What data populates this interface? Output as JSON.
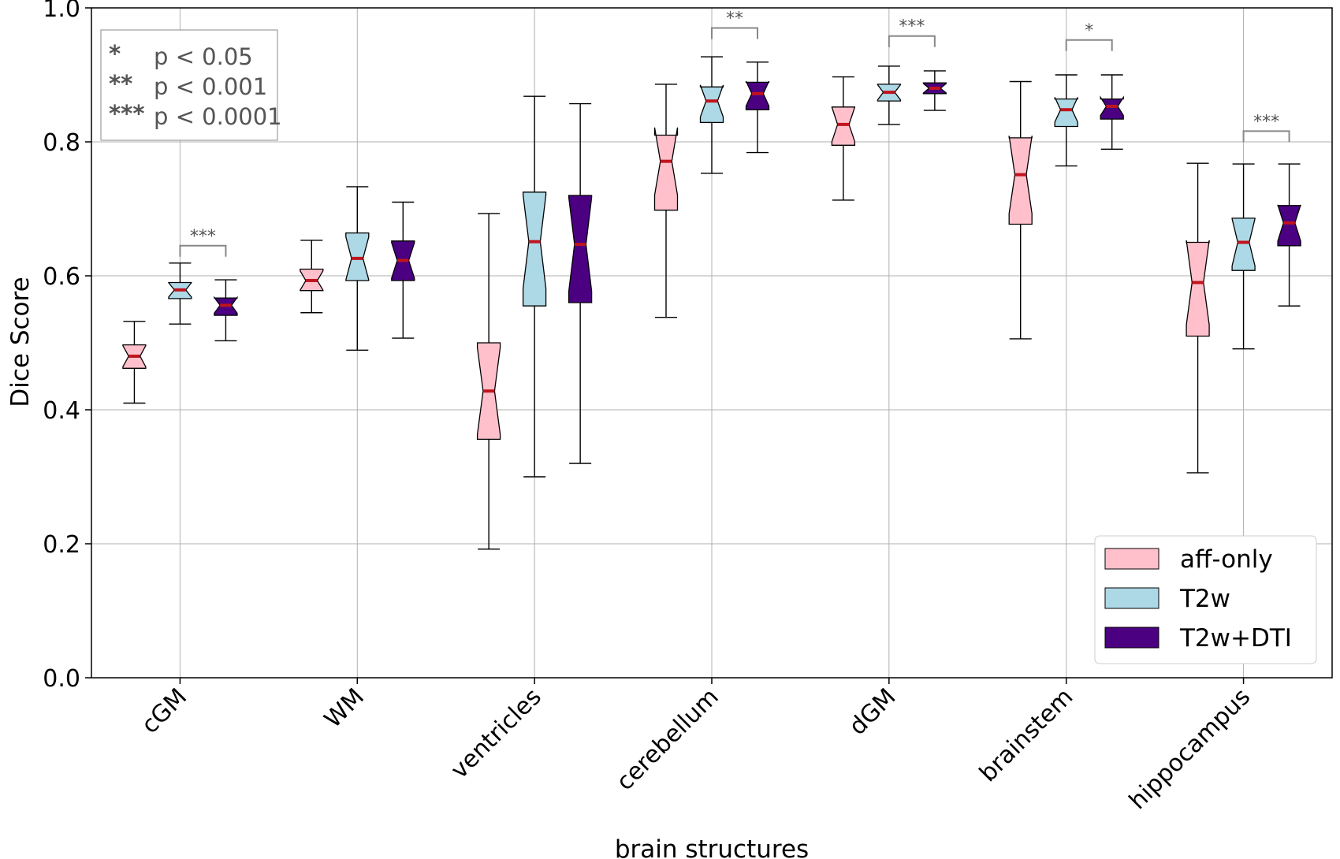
{
  "chart_data": {
    "type": "boxplot",
    "title": "",
    "xlabel": "brain structures",
    "ylabel": "Dice Score",
    "ylim": [
      0.0,
      1.0
    ],
    "yticks": [
      0.0,
      0.2,
      0.4,
      0.6,
      0.8,
      1.0
    ],
    "ytick_labels": [
      "0.0",
      "0.2",
      "0.4",
      "0.6",
      "0.8",
      "1.0"
    ],
    "grid": true,
    "legend_position": "bottom-right",
    "categories": [
      "cGM",
      "WM",
      "ventricles",
      "cerebellum",
      "dGM",
      "brainstem",
      "hippocampus"
    ],
    "series": [
      {
        "name": "aff-only",
        "color": "#ffc0cb",
        "boxes": [
          {
            "whislo": 0.41,
            "q1": 0.462,
            "med": 0.48,
            "q3": 0.497,
            "whishi": 0.532
          },
          {
            "whislo": 0.545,
            "q1": 0.578,
            "med": 0.593,
            "q3": 0.61,
            "whishi": 0.653
          },
          {
            "whislo": 0.192,
            "q1": 0.356,
            "med": 0.428,
            "q3": 0.5,
            "whishi": 0.693
          },
          {
            "whislo": 0.538,
            "q1": 0.698,
            "med": 0.771,
            "q3": 0.81,
            "whishi": 0.886
          },
          {
            "whislo": 0.713,
            "q1": 0.795,
            "med": 0.826,
            "q3": 0.852,
            "whishi": 0.897
          },
          {
            "whislo": 0.506,
            "q1": 0.677,
            "med": 0.751,
            "q3": 0.806,
            "whishi": 0.89
          },
          {
            "whislo": 0.306,
            "q1": 0.51,
            "med": 0.59,
            "q3": 0.65,
            "whishi": 0.768
          }
        ]
      },
      {
        "name": "T2w",
        "color": "#add8e6",
        "boxes": [
          {
            "whislo": 0.528,
            "q1": 0.566,
            "med": 0.579,
            "q3": 0.59,
            "whishi": 0.619
          },
          {
            "whislo": 0.489,
            "q1": 0.593,
            "med": 0.626,
            "q3": 0.664,
            "whishi": 0.733
          },
          {
            "whislo": 0.3,
            "q1": 0.555,
            "med": 0.651,
            "q3": 0.725,
            "whishi": 0.868
          },
          {
            "whislo": 0.753,
            "q1": 0.829,
            "med": 0.861,
            "q3": 0.882,
            "whishi": 0.927
          },
          {
            "whislo": 0.826,
            "q1": 0.861,
            "med": 0.874,
            "q3": 0.886,
            "whishi": 0.913
          },
          {
            "whislo": 0.764,
            "q1": 0.823,
            "med": 0.848,
            "q3": 0.864,
            "whishi": 0.9
          },
          {
            "whislo": 0.491,
            "q1": 0.608,
            "med": 0.65,
            "q3": 0.686,
            "whishi": 0.767
          }
        ]
      },
      {
        "name": "T2w+DTI",
        "color": "#4b0082",
        "boxes": [
          {
            "whislo": 0.503,
            "q1": 0.541,
            "med": 0.556,
            "q3": 0.567,
            "whishi": 0.594
          },
          {
            "whislo": 0.507,
            "q1": 0.593,
            "med": 0.623,
            "q3": 0.652,
            "whishi": 0.71
          },
          {
            "whislo": 0.32,
            "q1": 0.56,
            "med": 0.647,
            "q3": 0.72,
            "whishi": 0.857
          },
          {
            "whislo": 0.784,
            "q1": 0.848,
            "med": 0.872,
            "q3": 0.889,
            "whishi": 0.919
          },
          {
            "whislo": 0.847,
            "q1": 0.872,
            "med": 0.88,
            "q3": 0.888,
            "whishi": 0.906
          },
          {
            "whislo": 0.789,
            "q1": 0.834,
            "med": 0.853,
            "q3": 0.864,
            "whishi": 0.9
          },
          {
            "whislo": 0.555,
            "q1": 0.645,
            "med": 0.679,
            "q3": 0.705,
            "whishi": 0.767
          }
        ]
      }
    ],
    "median_color": "#c0141e",
    "significance": [
      {
        "category": "cGM",
        "between": [
          "T2w",
          "T2w+DTI"
        ],
        "label": "***",
        "y": 0.645
      },
      {
        "category": "cerebellum",
        "between": [
          "T2w",
          "T2w+DTI"
        ],
        "label": "**",
        "y": 0.97
      },
      {
        "category": "dGM",
        "between": [
          "T2w",
          "T2w+DTI"
        ],
        "label": "***",
        "y": 0.958
      },
      {
        "category": "brainstem",
        "between": [
          "T2w",
          "T2w+DTI"
        ],
        "label": "*",
        "y": 0.952
      },
      {
        "category": "hippocampus",
        "between": [
          "T2w",
          "T2w+DTI"
        ],
        "label": "***",
        "y": 0.816
      }
    ],
    "significance_key": [
      {
        "symbol": "*",
        "meaning": "p < 0.05"
      },
      {
        "symbol": "**",
        "meaning": "p < 0.001"
      },
      {
        "symbol": "***",
        "meaning": "p < 0.0001"
      }
    ]
  }
}
